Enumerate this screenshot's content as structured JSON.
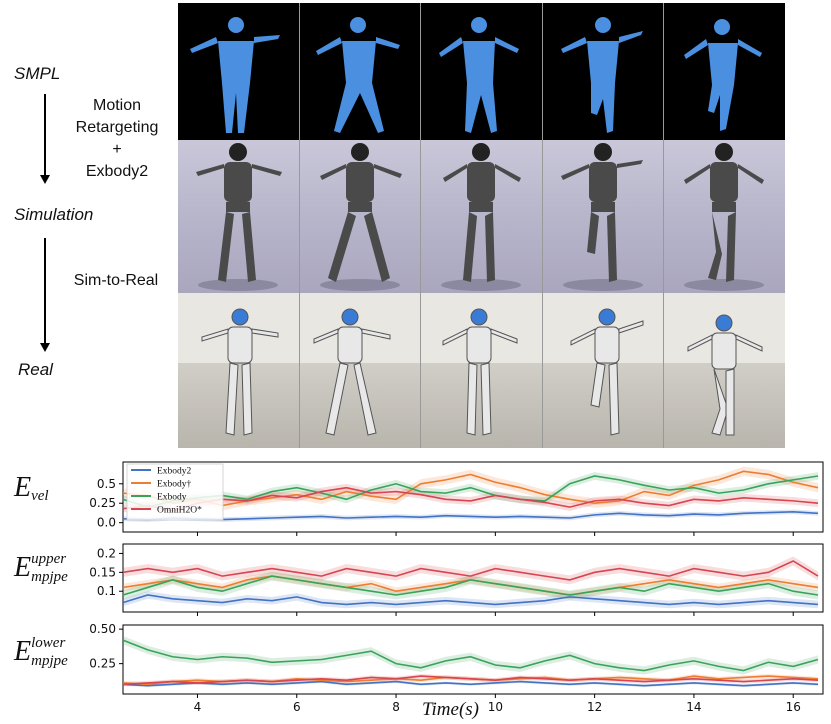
{
  "stages": {
    "smpl": "SMPL",
    "simulation": "Simulation",
    "real": "Real",
    "step1": [
      "Motion",
      "Retargeting",
      "+",
      "Exbody2"
    ],
    "step2": "Sim-to-Real"
  },
  "chart_data": [
    {
      "type": "line",
      "ylabel_base": "E",
      "ylabel_sub": "vel",
      "ylabel_sup": "",
      "xlim": [
        2.5,
        16.6
      ],
      "ylim": [
        -0.12,
        0.78
      ],
      "yticks": [
        0.0,
        0.25,
        0.5
      ],
      "ytick_labels": [
        "0.0",
        "0.25",
        "0.5"
      ],
      "legend": {
        "placement": "top-left",
        "entries": [
          "Exbody2",
          "Exbody†",
          "Exbody",
          "OmniH2O*"
        ]
      },
      "x": [
        2.5,
        3,
        3.5,
        4,
        4.5,
        5,
        5.5,
        6,
        6.5,
        7,
        7.5,
        8,
        8.5,
        9,
        9.5,
        10,
        10.5,
        11,
        11.5,
        12,
        12.5,
        13,
        13.5,
        14,
        14.5,
        15,
        15.5,
        16,
        16.5
      ],
      "series": [
        {
          "name": "Exbody2",
          "color": "#4472c4",
          "band": 0.03,
          "values": [
            0.05,
            0.04,
            0.06,
            0.05,
            0.04,
            0.05,
            0.06,
            0.07,
            0.08,
            0.06,
            0.07,
            0.08,
            0.07,
            0.09,
            0.08,
            0.07,
            0.08,
            0.07,
            0.06,
            0.1,
            0.12,
            0.1,
            0.09,
            0.11,
            0.1,
            0.12,
            0.13,
            0.14,
            0.12
          ]
        },
        {
          "name": "Exbody†",
          "color": "#ed7d31",
          "band": 0.06,
          "values": [
            0.38,
            0.35,
            0.25,
            0.3,
            0.22,
            0.28,
            0.32,
            0.36,
            0.3,
            0.4,
            0.34,
            0.3,
            0.5,
            0.55,
            0.62,
            0.52,
            0.45,
            0.36,
            0.3,
            0.25,
            0.28,
            0.4,
            0.35,
            0.48,
            0.55,
            0.66,
            0.62,
            0.52,
            0.45
          ]
        },
        {
          "name": "Exbody",
          "color": "#3aa35a",
          "band": 0.05,
          "values": [
            0.3,
            0.2,
            0.28,
            0.32,
            0.35,
            0.3,
            0.4,
            0.45,
            0.38,
            0.3,
            0.42,
            0.5,
            0.4,
            0.38,
            0.45,
            0.35,
            0.3,
            0.28,
            0.5,
            0.6,
            0.55,
            0.48,
            0.42,
            0.45,
            0.38,
            0.42,
            0.5,
            0.55,
            0.6
          ]
        },
        {
          "name": "OmniH2O*",
          "color": "#d64550",
          "band": 0.05,
          "values": [
            0.18,
            0.22,
            0.15,
            0.25,
            0.3,
            0.28,
            0.35,
            0.32,
            0.4,
            0.45,
            0.38,
            0.4,
            0.36,
            0.3,
            0.28,
            0.35,
            0.3,
            0.26,
            0.2,
            0.28,
            0.3,
            0.25,
            0.22,
            0.3,
            0.28,
            0.32,
            0.3,
            0.28,
            0.25
          ]
        }
      ]
    },
    {
      "type": "line",
      "ylabel_base": "E",
      "ylabel_sub": "mpjpe",
      "ylabel_sup": "upper",
      "xlim": [
        2.5,
        16.6
      ],
      "ylim": [
        0.045,
        0.225
      ],
      "yticks": [
        0.1,
        0.15,
        0.2
      ],
      "ytick_labels": [
        "0.1",
        "0.15",
        "0.2"
      ],
      "x": [
        2.5,
        3,
        3.5,
        4,
        4.5,
        5,
        5.5,
        6,
        6.5,
        7,
        7.5,
        8,
        8.5,
        9,
        9.5,
        10,
        10.5,
        11,
        11.5,
        12,
        12.5,
        13,
        13.5,
        14,
        14.5,
        15,
        15.5,
        16,
        16.5
      ],
      "series": [
        {
          "name": "Exbody2",
          "color": "#4472c4",
          "band": 0.01,
          "values": [
            0.07,
            0.09,
            0.08,
            0.075,
            0.07,
            0.08,
            0.075,
            0.085,
            0.07,
            0.065,
            0.07,
            0.065,
            0.07,
            0.075,
            0.07,
            0.065,
            0.07,
            0.075,
            0.085,
            0.08,
            0.075,
            0.07,
            0.065,
            0.07,
            0.065,
            0.07,
            0.075,
            0.07,
            0.065
          ]
        },
        {
          "name": "Exbody†",
          "color": "#ed7d31",
          "band": 0.01,
          "values": [
            0.11,
            0.12,
            0.13,
            0.12,
            0.11,
            0.13,
            0.14,
            0.13,
            0.12,
            0.11,
            0.12,
            0.1,
            0.11,
            0.12,
            0.13,
            0.12,
            0.11,
            0.1,
            0.09,
            0.1,
            0.11,
            0.12,
            0.13,
            0.12,
            0.11,
            0.12,
            0.13,
            0.12,
            0.11
          ]
        },
        {
          "name": "Exbody",
          "color": "#3aa35a",
          "band": 0.012,
          "values": [
            0.09,
            0.11,
            0.13,
            0.11,
            0.1,
            0.12,
            0.14,
            0.13,
            0.12,
            0.11,
            0.1,
            0.09,
            0.1,
            0.11,
            0.13,
            0.12,
            0.11,
            0.1,
            0.09,
            0.1,
            0.11,
            0.1,
            0.12,
            0.11,
            0.1,
            0.11,
            0.12,
            0.1,
            0.09
          ]
        },
        {
          "name": "OmniH2O*",
          "color": "#d64550",
          "band": 0.012,
          "values": [
            0.15,
            0.16,
            0.15,
            0.16,
            0.14,
            0.15,
            0.16,
            0.15,
            0.14,
            0.16,
            0.15,
            0.14,
            0.16,
            0.15,
            0.14,
            0.16,
            0.15,
            0.14,
            0.13,
            0.15,
            0.16,
            0.15,
            0.14,
            0.16,
            0.15,
            0.14,
            0.15,
            0.18,
            0.14
          ]
        }
      ]
    },
    {
      "type": "line",
      "ylabel_base": "E",
      "ylabel_sub": "mpjpe",
      "ylabel_sup": "lower",
      "xlim": [
        2.5,
        16.6
      ],
      "ylim": [
        0.03,
        0.53
      ],
      "yticks": [
        0.25,
        0.5
      ],
      "ytick_labels": [
        "0.25",
        "0.50"
      ],
      "xticks": [
        4,
        6,
        8,
        10,
        12,
        14,
        16
      ],
      "xtick_labels": [
        "4",
        "6",
        "8",
        "10",
        "12",
        "14",
        "16"
      ],
      "xlabel": "Time(s)",
      "x": [
        2.5,
        3,
        3.5,
        4,
        4.5,
        5,
        5.5,
        6,
        6.5,
        7,
        7.5,
        8,
        8.5,
        9,
        9.5,
        10,
        10.5,
        11,
        11.5,
        12,
        12.5,
        13,
        13.5,
        14,
        14.5,
        15,
        15.5,
        16,
        16.5
      ],
      "series": [
        {
          "name": "Exbody2",
          "color": "#4472c4",
          "band": 0.01,
          "values": [
            0.1,
            0.09,
            0.1,
            0.11,
            0.1,
            0.11,
            0.1,
            0.11,
            0.12,
            0.1,
            0.11,
            0.12,
            0.1,
            0.11,
            0.1,
            0.11,
            0.12,
            0.11,
            0.1,
            0.11,
            0.1,
            0.09,
            0.1,
            0.11,
            0.1,
            0.09,
            0.1,
            0.11,
            0.1
          ]
        },
        {
          "name": "Exbody†",
          "color": "#ed7d31",
          "band": 0.015,
          "values": [
            0.11,
            0.1,
            0.12,
            0.13,
            0.12,
            0.13,
            0.12,
            0.14,
            0.13,
            0.12,
            0.13,
            0.14,
            0.13,
            0.15,
            0.14,
            0.13,
            0.14,
            0.15,
            0.13,
            0.14,
            0.15,
            0.14,
            0.13,
            0.16,
            0.14,
            0.15,
            0.16,
            0.15,
            0.14
          ]
        },
        {
          "name": "Exbody",
          "color": "#3aa35a",
          "band": 0.03,
          "values": [
            0.42,
            0.35,
            0.3,
            0.28,
            0.3,
            0.29,
            0.26,
            0.27,
            0.28,
            0.31,
            0.34,
            0.25,
            0.22,
            0.27,
            0.3,
            0.24,
            0.22,
            0.27,
            0.31,
            0.25,
            0.22,
            0.2,
            0.24,
            0.27,
            0.23,
            0.2,
            0.26,
            0.23,
            0.28
          ]
        },
        {
          "name": "OmniH2O*",
          "color": "#d64550",
          "band": 0.015,
          "values": [
            0.1,
            0.11,
            0.12,
            0.11,
            0.12,
            0.13,
            0.12,
            0.13,
            0.14,
            0.13,
            0.15,
            0.14,
            0.16,
            0.15,
            0.14,
            0.13,
            0.15,
            0.14,
            0.13,
            0.14,
            0.13,
            0.12,
            0.13,
            0.14,
            0.13,
            0.12,
            0.13,
            0.14,
            0.13
          ]
        }
      ]
    }
  ]
}
